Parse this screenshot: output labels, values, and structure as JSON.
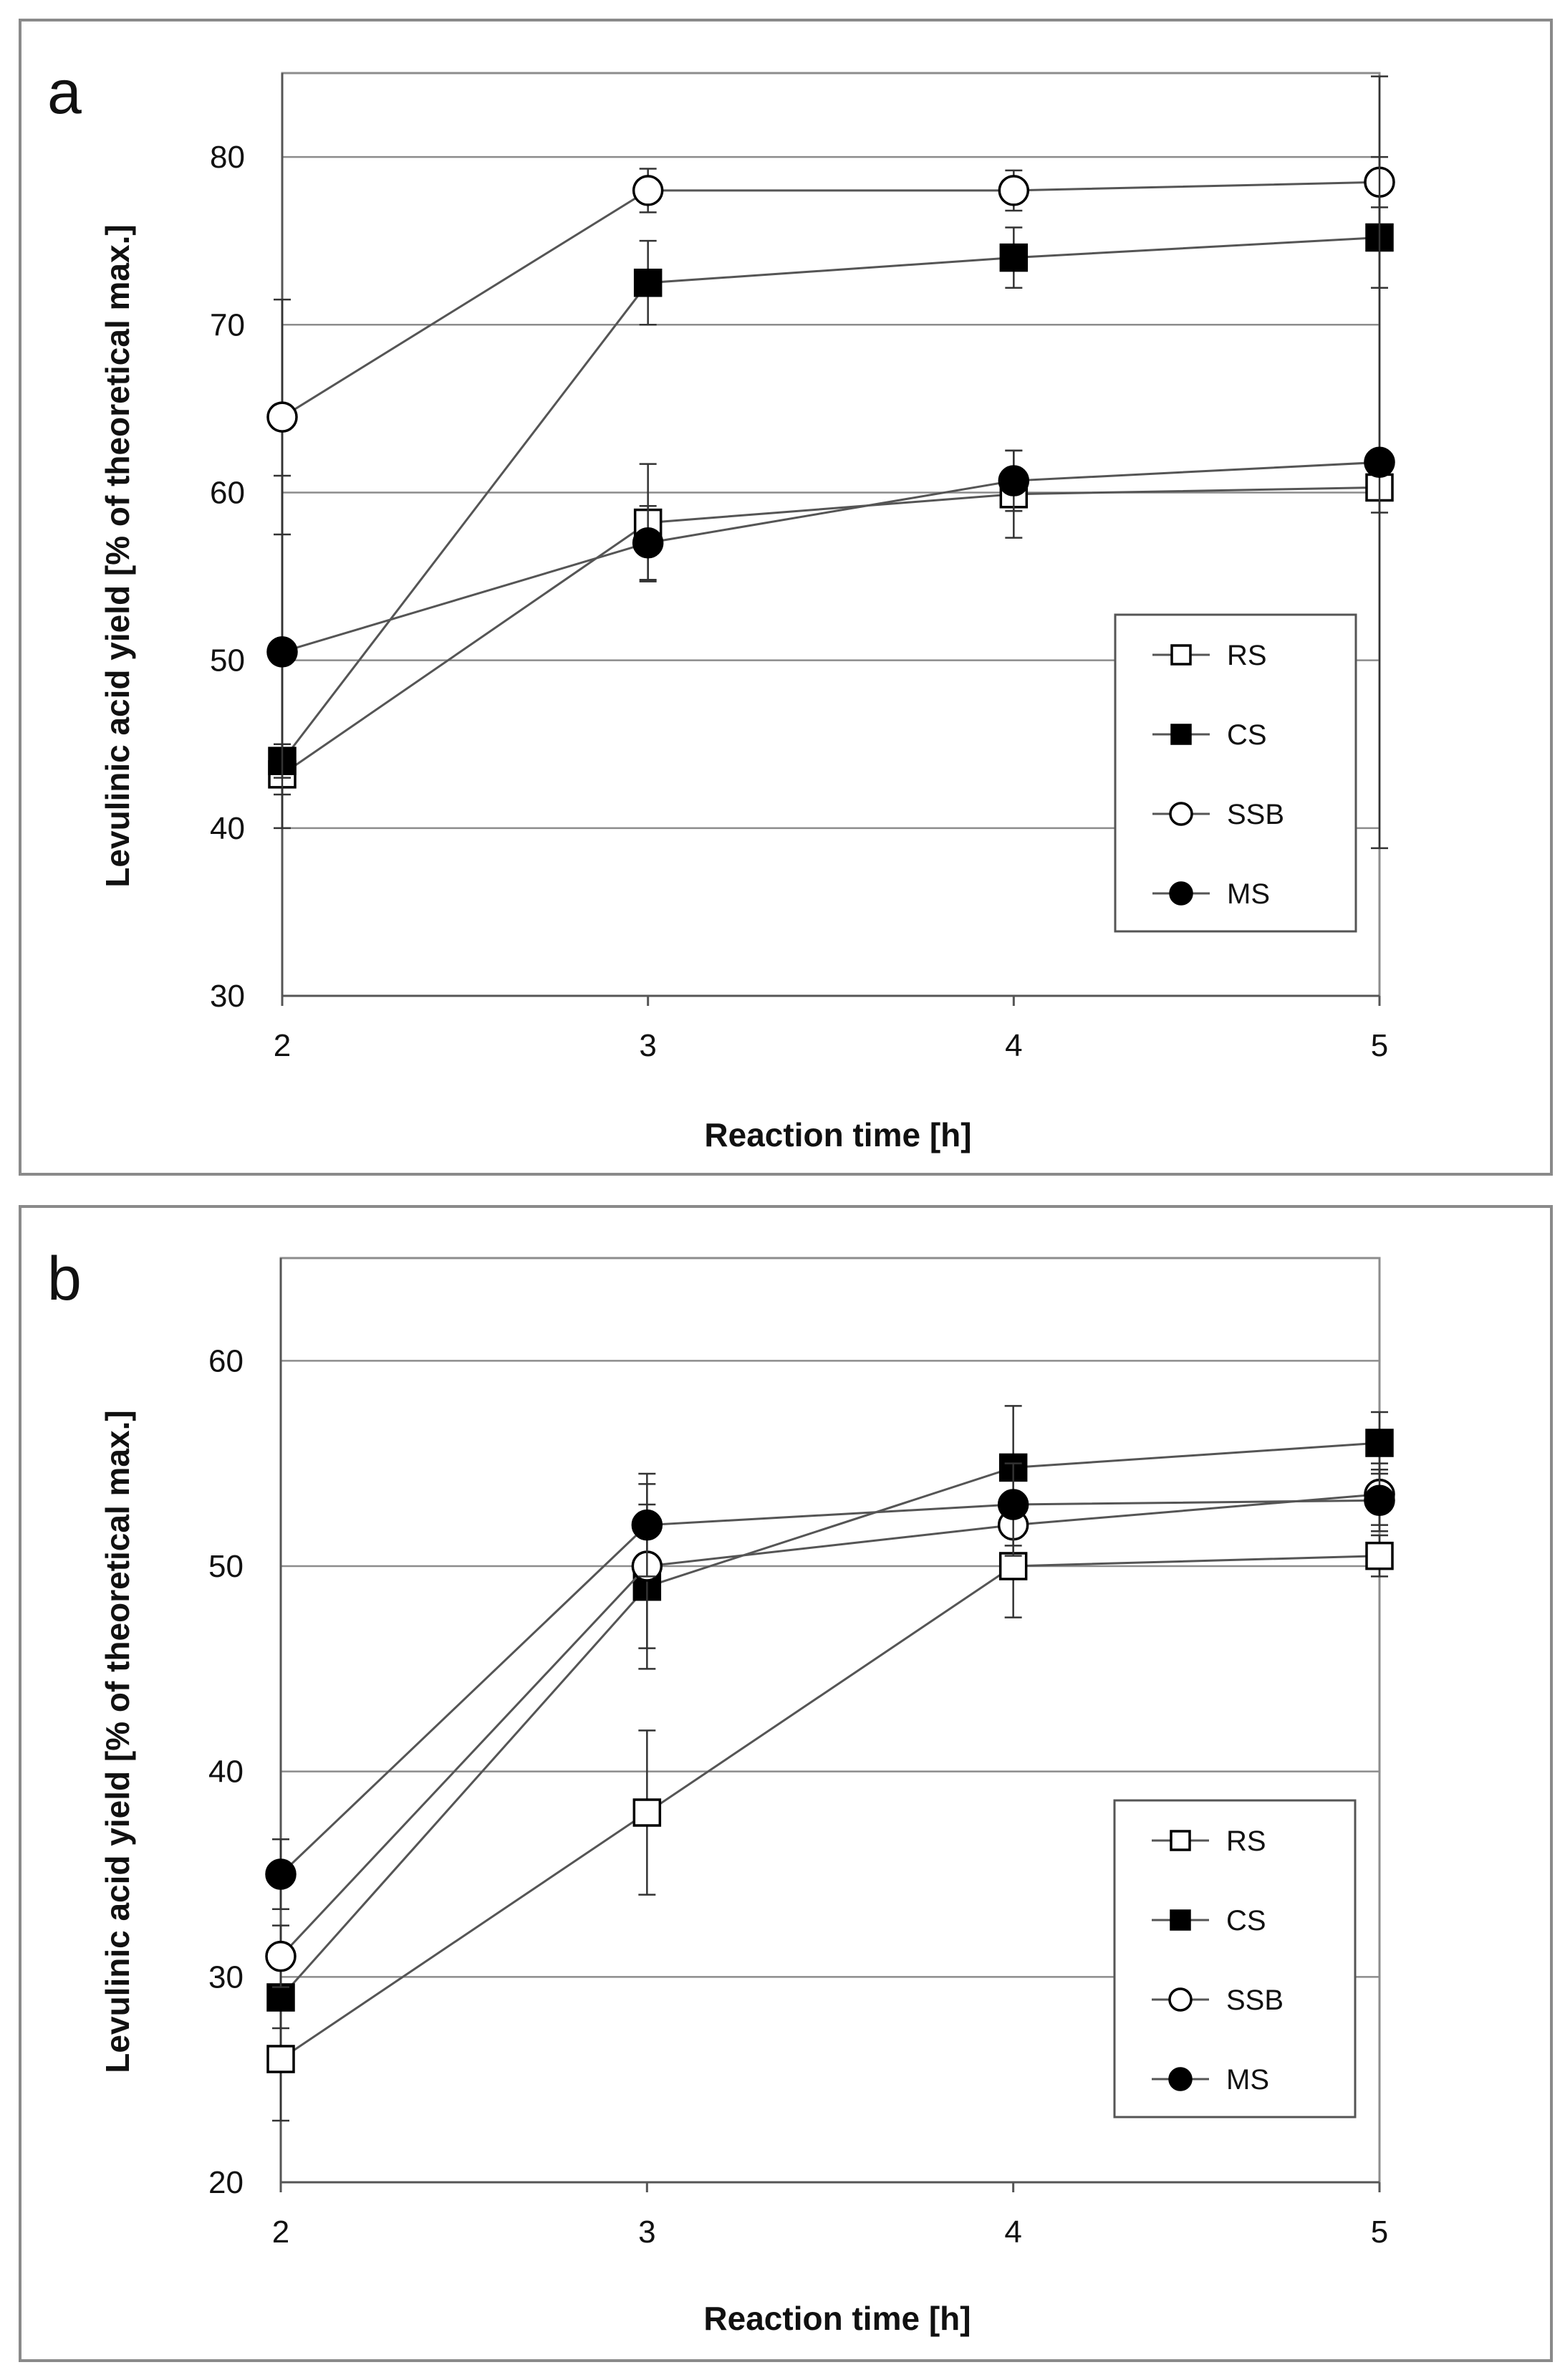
{
  "chart_data": [
    {
      "panel": "a",
      "type": "line",
      "xlabel": "Reaction time [h]",
      "ylabel": "Levulinic acid yield [% of theoretical max.]",
      "x": [
        2,
        3,
        4,
        5
      ],
      "xticks": [
        "2",
        "3",
        "4",
        "5"
      ],
      "ylim": [
        30,
        85
      ],
      "yticks": [
        30,
        40,
        50,
        60,
        70,
        80
      ],
      "grid": "horizontal",
      "legend_position": "bottom-right",
      "series": [
        {
          "name": "RS",
          "marker": "square",
          "filled": false,
          "values": [
            43.2,
            58.2,
            59.9,
            60.3
          ],
          "errors": [
            1.2,
            3.5,
            2.6,
            1.5
          ]
        },
        {
          "name": "CS",
          "marker": "square",
          "filled": true,
          "values": [
            44.0,
            72.5,
            74.0,
            75.2
          ],
          "errors": [
            1.0,
            2.5,
            1.8,
            3.0
          ]
        },
        {
          "name": "SSB",
          "marker": "circle",
          "filled": false,
          "values": [
            64.5,
            78.0,
            78.0,
            78.5
          ],
          "errors": [
            7.0,
            1.3,
            1.2,
            1.5
          ]
        },
        {
          "name": "MS",
          "marker": "circle",
          "filled": true,
          "values": [
            50.5,
            57.0,
            60.7,
            61.8
          ],
          "errors": [
            10.5,
            2.2,
            1.8,
            23.0
          ]
        }
      ]
    },
    {
      "panel": "b",
      "type": "line",
      "xlabel": "Reaction time [h]",
      "ylabel": "Levulinic acid yield [% of theoretical max.]",
      "x": [
        2,
        3,
        4,
        5
      ],
      "xticks": [
        "2",
        "3",
        "4",
        "5"
      ],
      "ylim": [
        20,
        65
      ],
      "yticks": [
        20,
        30,
        40,
        50,
        60
      ],
      "grid": "horizontal",
      "legend_position": "bottom-right",
      "series": [
        {
          "name": "RS",
          "marker": "square",
          "filled": false,
          "values": [
            26.0,
            38.0,
            50.0,
            50.5
          ],
          "errors": [
            3.0,
            4.0,
            2.5,
            1.0
          ]
        },
        {
          "name": "CS",
          "marker": "square",
          "filled": true,
          "values": [
            29.0,
            49.0,
            54.8,
            56.0
          ],
          "errors": [
            1.5,
            4.0,
            3.0,
            1.5
          ]
        },
        {
          "name": "SSB",
          "marker": "circle",
          "filled": false,
          "values": [
            31.0,
            50.0,
            52.0,
            53.5
          ],
          "errors": [
            1.5,
            4.0,
            1.5,
            1.5
          ]
        },
        {
          "name": "MS",
          "marker": "circle",
          "filled": true,
          "values": [
            35.0,
            52.0,
            53.0,
            53.2
          ],
          "errors": [
            1.7,
            2.5,
            2.0,
            1.5
          ]
        }
      ]
    }
  ]
}
